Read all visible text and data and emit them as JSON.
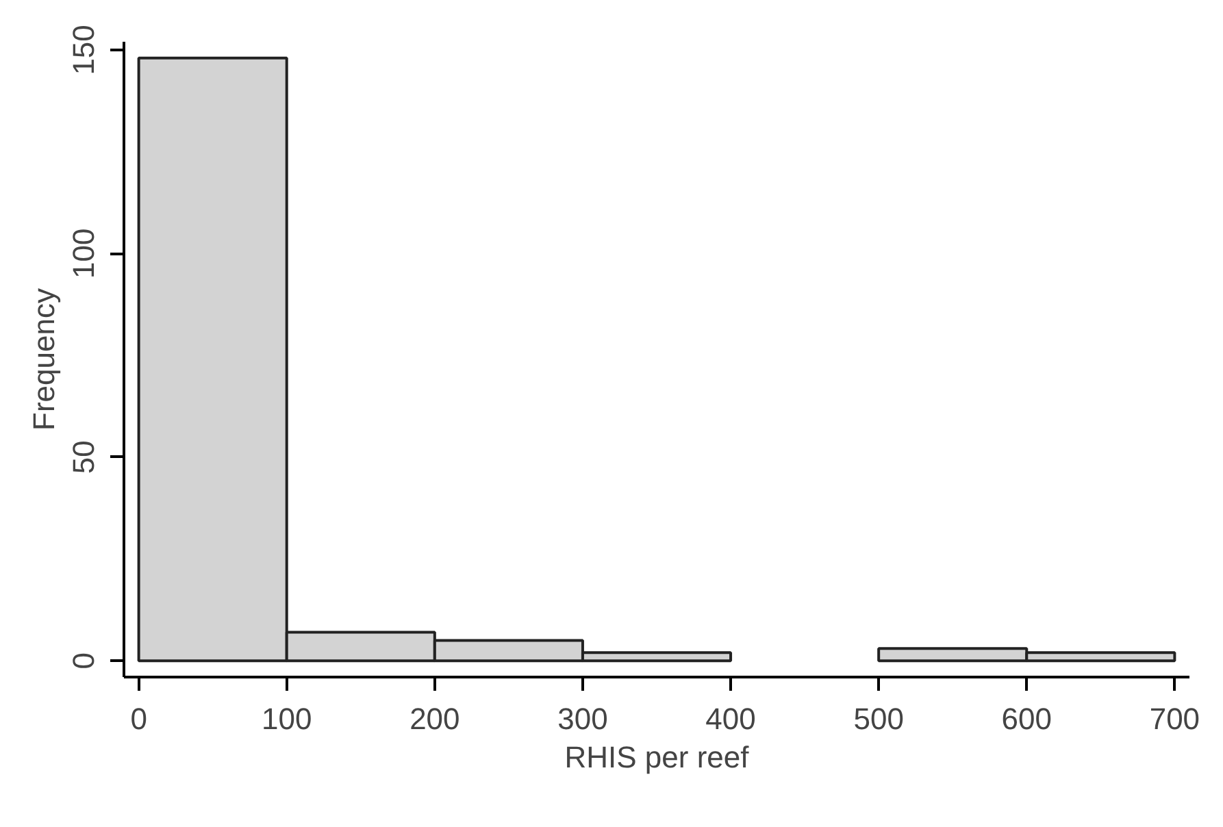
{
  "chart_data": {
    "type": "histogram",
    "xlabel": "RHIS per reef",
    "ylabel": "Frequency",
    "bins": [
      0,
      100,
      200,
      300,
      400,
      500,
      600,
      700
    ],
    "values": [
      148,
      7,
      5,
      2,
      0,
      3,
      2
    ],
    "color": "#d3d3d3",
    "xlim": [
      -10,
      710
    ],
    "ylim": [
      -4,
      152
    ],
    "xticks": [
      0,
      100,
      200,
      300,
      400,
      500,
      600,
      700
    ],
    "yticks": [
      0,
      50,
      100,
      150
    ],
    "grid": false
  }
}
